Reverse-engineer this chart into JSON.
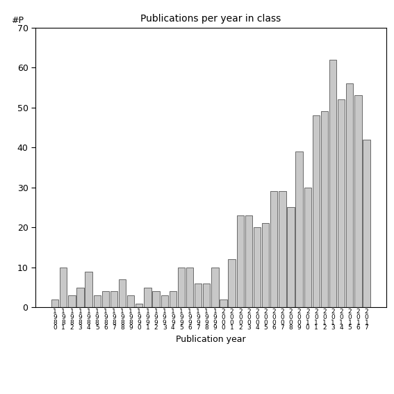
{
  "title": "Publications per year in class",
  "xlabel": "Publication year",
  "ylabel": "#P",
  "ylim": [
    0,
    70
  ],
  "yticks": [
    0,
    10,
    20,
    30,
    40,
    50,
    60,
    70
  ],
  "bar_color": "#c8c8c8",
  "bar_edge_color": "#555555",
  "categories": [
    "1980",
    "1981",
    "1982",
    "1983",
    "1984",
    "1985",
    "1986",
    "1987",
    "1988",
    "1989",
    "1990",
    "1991",
    "1992",
    "1993",
    "1994",
    "1995",
    "1996",
    "1997",
    "1998",
    "1999",
    "2000",
    "2001",
    "2002",
    "2003",
    "2004",
    "2005",
    "2006",
    "2007",
    "2008",
    "2009",
    "2010",
    "2011",
    "2012",
    "2013",
    "2014",
    "2015",
    "2016",
    "2017"
  ],
  "values": [
    2,
    10,
    3,
    5,
    9,
    3,
    4,
    4,
    7,
    3,
    1,
    5,
    4,
    3,
    4,
    10,
    10,
    6,
    6,
    10,
    2,
    12,
    23,
    23,
    20,
    21,
    29,
    29,
    25,
    39,
    30,
    48,
    49,
    62,
    52,
    56,
    53,
    42
  ],
  "background_color": "#ffffff",
  "figsize": [
    5.67,
    5.67
  ],
  "dpi": 100
}
